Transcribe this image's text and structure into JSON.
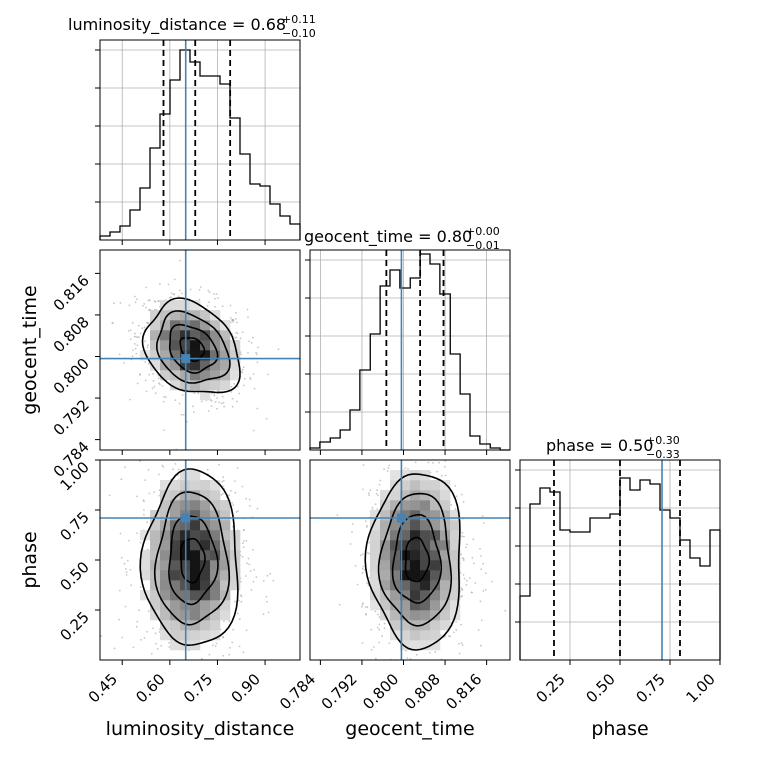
{
  "chart_data": {
    "type": "corner",
    "parameters": [
      "luminosity_distance",
      "geocent_time",
      "phase"
    ],
    "truth": {
      "luminosity_distance": 0.65,
      "geocent_time": 0.7996,
      "phase": 0.71
    },
    "truth_color": "#4682b4",
    "ranges": {
      "luminosity_distance": [
        0.38,
        1.01
      ],
      "geocent_time": [
        0.782,
        0.8205
      ],
      "phase": [
        0.0,
        1.0
      ]
    },
    "ticks": {
      "luminosity_distance": {
        "values": [
          0.45,
          0.6,
          0.75,
          0.9
        ],
        "labels": [
          "0.45",
          "0.60",
          "0.75",
          "0.90"
        ]
      },
      "geocent_time": {
        "values": [
          0.784,
          0.792,
          0.8,
          0.808,
          0.816
        ],
        "labels": [
          "0.784",
          "0.792",
          "0.800",
          "0.808",
          "0.816"
        ]
      },
      "phase": {
        "values": [
          0.25,
          0.5,
          0.75,
          1.0
        ],
        "labels": [
          "0.25",
          "0.50",
          "0.75",
          "1.00"
        ]
      }
    },
    "phase_y_ticks": {
      "values": [
        0.25,
        0.5,
        0.75,
        1.0
      ],
      "labels": [
        "0.25",
        "0.50",
        "0.75",
        "1.00"
      ]
    },
    "titles": {
      "luminosity_distance": {
        "text": "luminosity_distance = 0.68",
        "plus": "+0.11",
        "minus": "−0.10"
      },
      "geocent_time": {
        "text": "geocent_time = 0.80",
        "plus": "+0.00",
        "minus": "−0.01"
      },
      "phase": {
        "text": "phase = 0.50",
        "plus": "+0.30",
        "minus": "−0.33"
      }
    },
    "quantiles": {
      "luminosity_distance": [
        0.58,
        0.68,
        0.79
      ],
      "geocent_time": [
        0.7967,
        0.8032,
        0.8077
      ],
      "phase": [
        0.17,
        0.5,
        0.8
      ]
    },
    "histograms": {
      "luminosity_distance": {
        "bins": [
          0.38,
          0.4115,
          0.443,
          0.4745,
          0.506,
          0.5375,
          0.569,
          0.6005,
          0.632,
          0.6635,
          0.695,
          0.7265,
          0.758,
          0.7895,
          0.821,
          0.8525,
          0.884,
          0.9155,
          0.947,
          0.9785,
          1.01
        ],
        "counts": [
          0.02,
          0.04,
          0.07,
          0.15,
          0.26,
          0.46,
          0.63,
          0.8,
          0.95,
          0.89,
          0.82,
          0.82,
          0.78,
          0.61,
          0.43,
          0.28,
          0.27,
          0.18,
          0.12,
          0.08
        ]
      },
      "geocent_time": {
        "bins": [
          0.782,
          0.7839,
          0.7859,
          0.7878,
          0.7897,
          0.7916,
          0.7936,
          0.7955,
          0.7974,
          0.7993,
          0.8013,
          0.8032,
          0.8051,
          0.807,
          0.809,
          0.8109,
          0.8128,
          0.8147,
          0.8167,
          0.8186,
          0.8205
        ],
        "counts": [
          0.01,
          0.04,
          0.06,
          0.1,
          0.2,
          0.4,
          0.58,
          0.82,
          0.9,
          0.81,
          0.86,
          0.98,
          0.93,
          0.78,
          0.48,
          0.28,
          0.07,
          0.03,
          0.01,
          0.0
        ]
      },
      "phase": {
        "bins": [
          0.0,
          0.05,
          0.1,
          0.15,
          0.2,
          0.25,
          0.3,
          0.35,
          0.4,
          0.45,
          0.5,
          0.55,
          0.6,
          0.65,
          0.7,
          0.75,
          0.8,
          0.85,
          0.9,
          0.95,
          1.0
        ],
        "counts": [
          0.32,
          0.78,
          0.86,
          0.84,
          0.65,
          0.64,
          0.64,
          0.71,
          0.71,
          0.73,
          0.91,
          0.85,
          0.9,
          0.88,
          0.75,
          0.71,
          0.6,
          0.51,
          0.47,
          0.65
        ]
      }
    },
    "pairs": [
      {
        "x": "luminosity_distance",
        "y": "geocent_time",
        "mean": [
          0.67,
          0.8015
        ],
        "sd": [
          0.075,
          0.0045
        ],
        "rho": -0.25,
        "contours_sigma": [
          0.5,
          1.0,
          1.5,
          2.0
        ]
      },
      {
        "x": "luminosity_distance",
        "y": "phase",
        "mean": [
          0.67,
          0.5
        ],
        "sd": [
          0.075,
          0.22
        ],
        "rho": 0.0,
        "contours_sigma": [
          0.5,
          1.0,
          1.5,
          2.0
        ]
      },
      {
        "x": "geocent_time",
        "y": "phase",
        "mean": [
          0.8025,
          0.5
        ],
        "sd": [
          0.0045,
          0.22
        ],
        "rho": 0.0,
        "contours_sigma": [
          0.5,
          1.0,
          1.5,
          2.0
        ]
      }
    ],
    "grid": true
  }
}
